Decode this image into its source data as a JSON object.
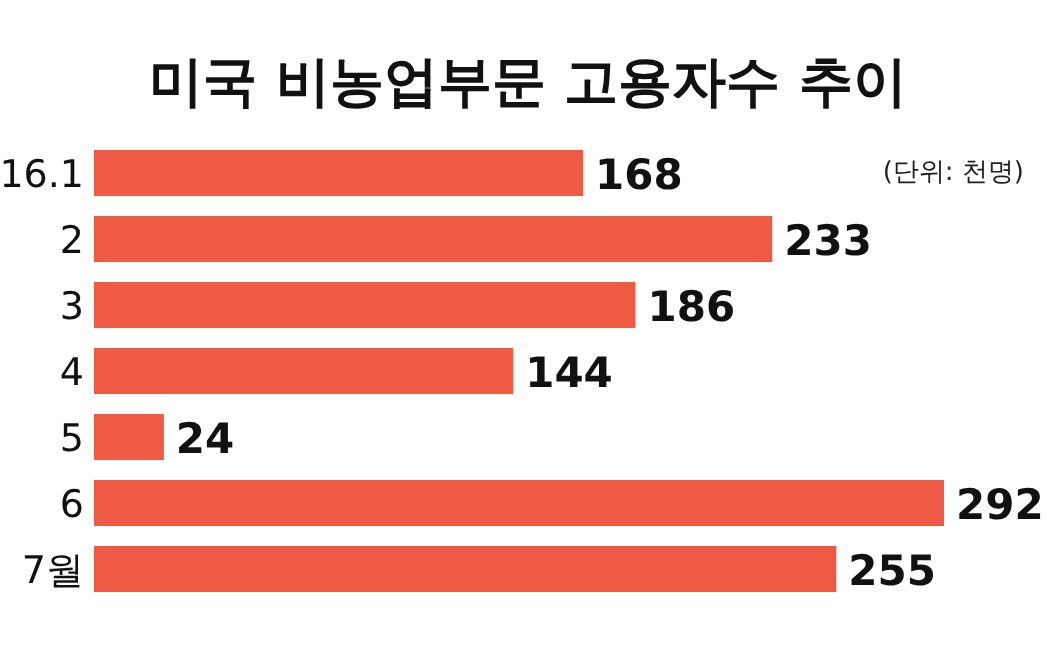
{
  "chart_data": {
    "type": "bar",
    "orientation": "horizontal",
    "title": "미국 비농업부문 고용자수 추이",
    "annotations": [
      "(단위: 천명)"
    ],
    "categories": [
      "16.1",
      "2",
      "3",
      "4",
      "5",
      "6",
      "7월"
    ],
    "values": [
      168,
      233,
      186,
      144,
      24,
      292,
      255
    ],
    "color": "#ef5a45",
    "data_labels": true
  }
}
